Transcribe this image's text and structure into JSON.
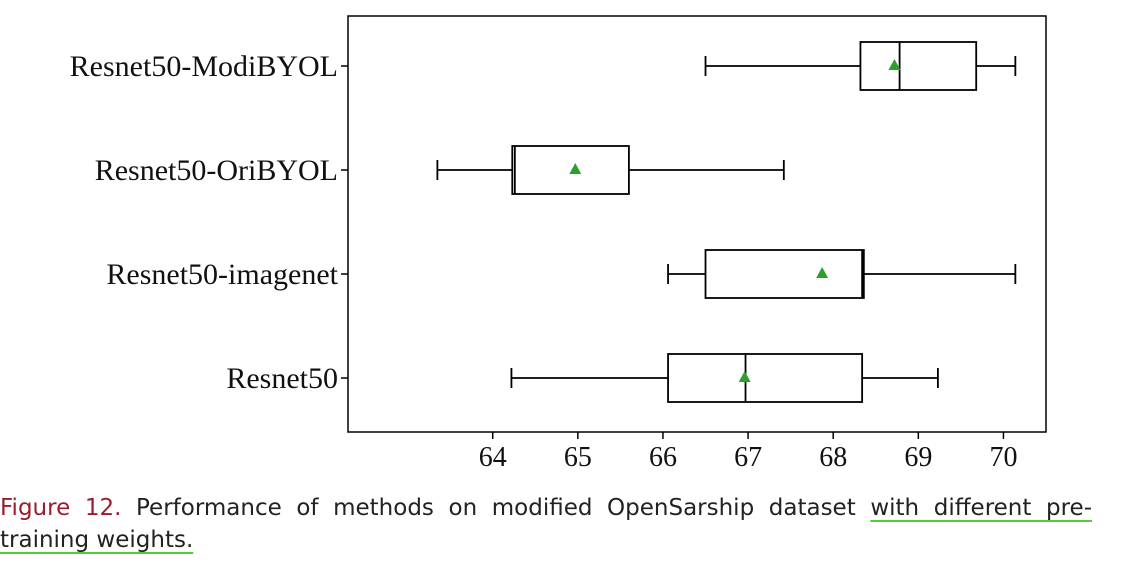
{
  "chart_data": {
    "type": "boxplot",
    "orientation": "horizontal",
    "categories": [
      "Resnet50-ModiBYOL",
      "Resnet50-OriBYOL",
      "Resnet50-imagenet",
      "Resnet50"
    ],
    "boxes": [
      {
        "name": "Resnet50-ModiBYOL",
        "whisker_low": 66.5,
        "q1": 68.32,
        "median": 68.78,
        "q3": 69.68,
        "whisker_high": 70.14,
        "mean": 68.72
      },
      {
        "name": "Resnet50-OriBYOL",
        "whisker_low": 63.35,
        "q1": 64.23,
        "median": 64.26,
        "q3": 65.6,
        "whisker_high": 67.42,
        "mean": 64.97
      },
      {
        "name": "Resnet50-imagenet",
        "whisker_low": 66.06,
        "q1": 66.5,
        "median": 68.34,
        "q3": 68.36,
        "whisker_high": 70.14,
        "mean": 67.87
      },
      {
        "name": "Resnet50",
        "whisker_low": 64.22,
        "q1": 66.06,
        "median": 66.97,
        "q3": 68.34,
        "whisker_high": 69.23,
        "mean": 66.96
      }
    ],
    "xlim": [
      62.3,
      70.5
    ],
    "xticks": [
      "64",
      "65",
      "66",
      "67",
      "68",
      "69",
      "70"
    ],
    "mean_marker_color": "#2ca02c",
    "box_color": "#000000",
    "grid": false,
    "title": "",
    "xlabel": "",
    "ylabel": ""
  },
  "caption": {
    "figure_number": "Figure 12.",
    "text": "Performance of methods on modified OpenSarship dataset ",
    "highlighted": "with different pre-training weights."
  }
}
